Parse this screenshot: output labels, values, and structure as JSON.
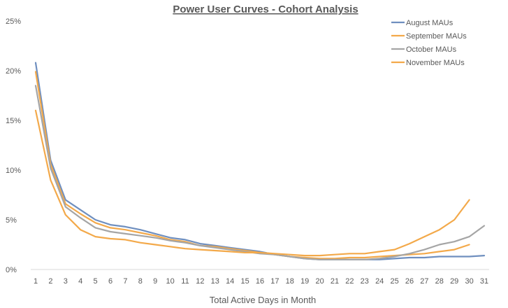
{
  "chart_data": {
    "type": "line",
    "title": "Power User Curves - Cohort Analysis",
    "xlabel": "Total Active Days in Month",
    "ylabel": "",
    "x": [
      1,
      2,
      3,
      4,
      5,
      6,
      7,
      8,
      9,
      10,
      11,
      12,
      13,
      14,
      15,
      16,
      17,
      18,
      19,
      20,
      21,
      22,
      23,
      24,
      25,
      26,
      27,
      28,
      29,
      30,
      31
    ],
    "ylim": [
      0,
      25
    ],
    "yticks": [
      0,
      5,
      10,
      15,
      20,
      25
    ],
    "ytick_labels": [
      "0%",
      "5%",
      "10%",
      "15%",
      "20%",
      "25%"
    ],
    "grid": false,
    "legend_position": "top-right",
    "series": [
      {
        "name": "August MAUs",
        "color": "#6f8fbf",
        "values": [
          20.8,
          11.0,
          7.0,
          6.0,
          5.0,
          4.5,
          4.3,
          4.0,
          3.6,
          3.2,
          3.0,
          2.6,
          2.4,
          2.2,
          2.0,
          1.8,
          1.5,
          1.3,
          1.1,
          1.0,
          1.0,
          1.0,
          1.0,
          1.0,
          1.1,
          1.2,
          1.2,
          1.3,
          1.3,
          1.3,
          1.4
        ]
      },
      {
        "name": "September MAUs",
        "color": "#f3a94a",
        "values": [
          19.9,
          10.6,
          6.6,
          5.6,
          4.7,
          4.2,
          4.0,
          3.7,
          3.4,
          3.0,
          2.8,
          2.4,
          2.3,
          2.1,
          1.9,
          1.7,
          1.5,
          1.3,
          1.2,
          1.1,
          1.1,
          1.2,
          1.2,
          1.3,
          1.4,
          1.5,
          1.6,
          1.8,
          2.0,
          2.5,
          null
        ]
      },
      {
        "name": "October MAUs",
        "color": "#a5a5a5",
        "values": [
          18.5,
          10.2,
          6.3,
          5.2,
          4.2,
          3.8,
          3.6,
          3.4,
          3.2,
          2.9,
          2.7,
          2.4,
          2.2,
          2.0,
          1.8,
          1.6,
          1.5,
          1.3,
          1.1,
          1.0,
          1.0,
          1.0,
          1.0,
          1.1,
          1.3,
          1.6,
          2.0,
          2.5,
          2.8,
          3.3,
          4.4
        ]
      },
      {
        "name": "November MAUs",
        "color": "#f3a94a",
        "values": [
          16.0,
          9.0,
          5.5,
          4.0,
          3.3,
          3.1,
          3.0,
          2.7,
          2.5,
          2.3,
          2.1,
          2.0,
          1.9,
          1.8,
          1.7,
          1.7,
          1.6,
          1.5,
          1.4,
          1.4,
          1.5,
          1.6,
          1.6,
          1.8,
          2.0,
          2.6,
          3.3,
          4.0,
          5.0,
          7.0,
          null
        ]
      }
    ]
  }
}
